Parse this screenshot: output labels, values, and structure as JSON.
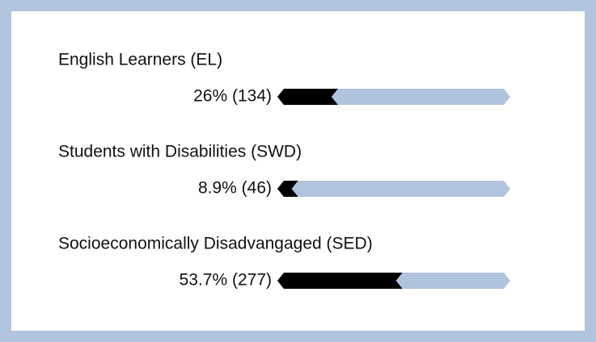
{
  "chart_data": {
    "type": "bar",
    "categories": [
      "English Learners (EL)",
      "Students with Disabilities (SWD)",
      "Socioeconomically Disadvangaged (SED)"
    ],
    "values": [
      26,
      8.9,
      53.7
    ],
    "value_labels": [
      "26% (134)",
      "8.9% (46)",
      "53.7% (277)"
    ],
    "xlim": [
      0,
      100
    ],
    "color": "#000000",
    "track_color": "#b0c4de"
  }
}
